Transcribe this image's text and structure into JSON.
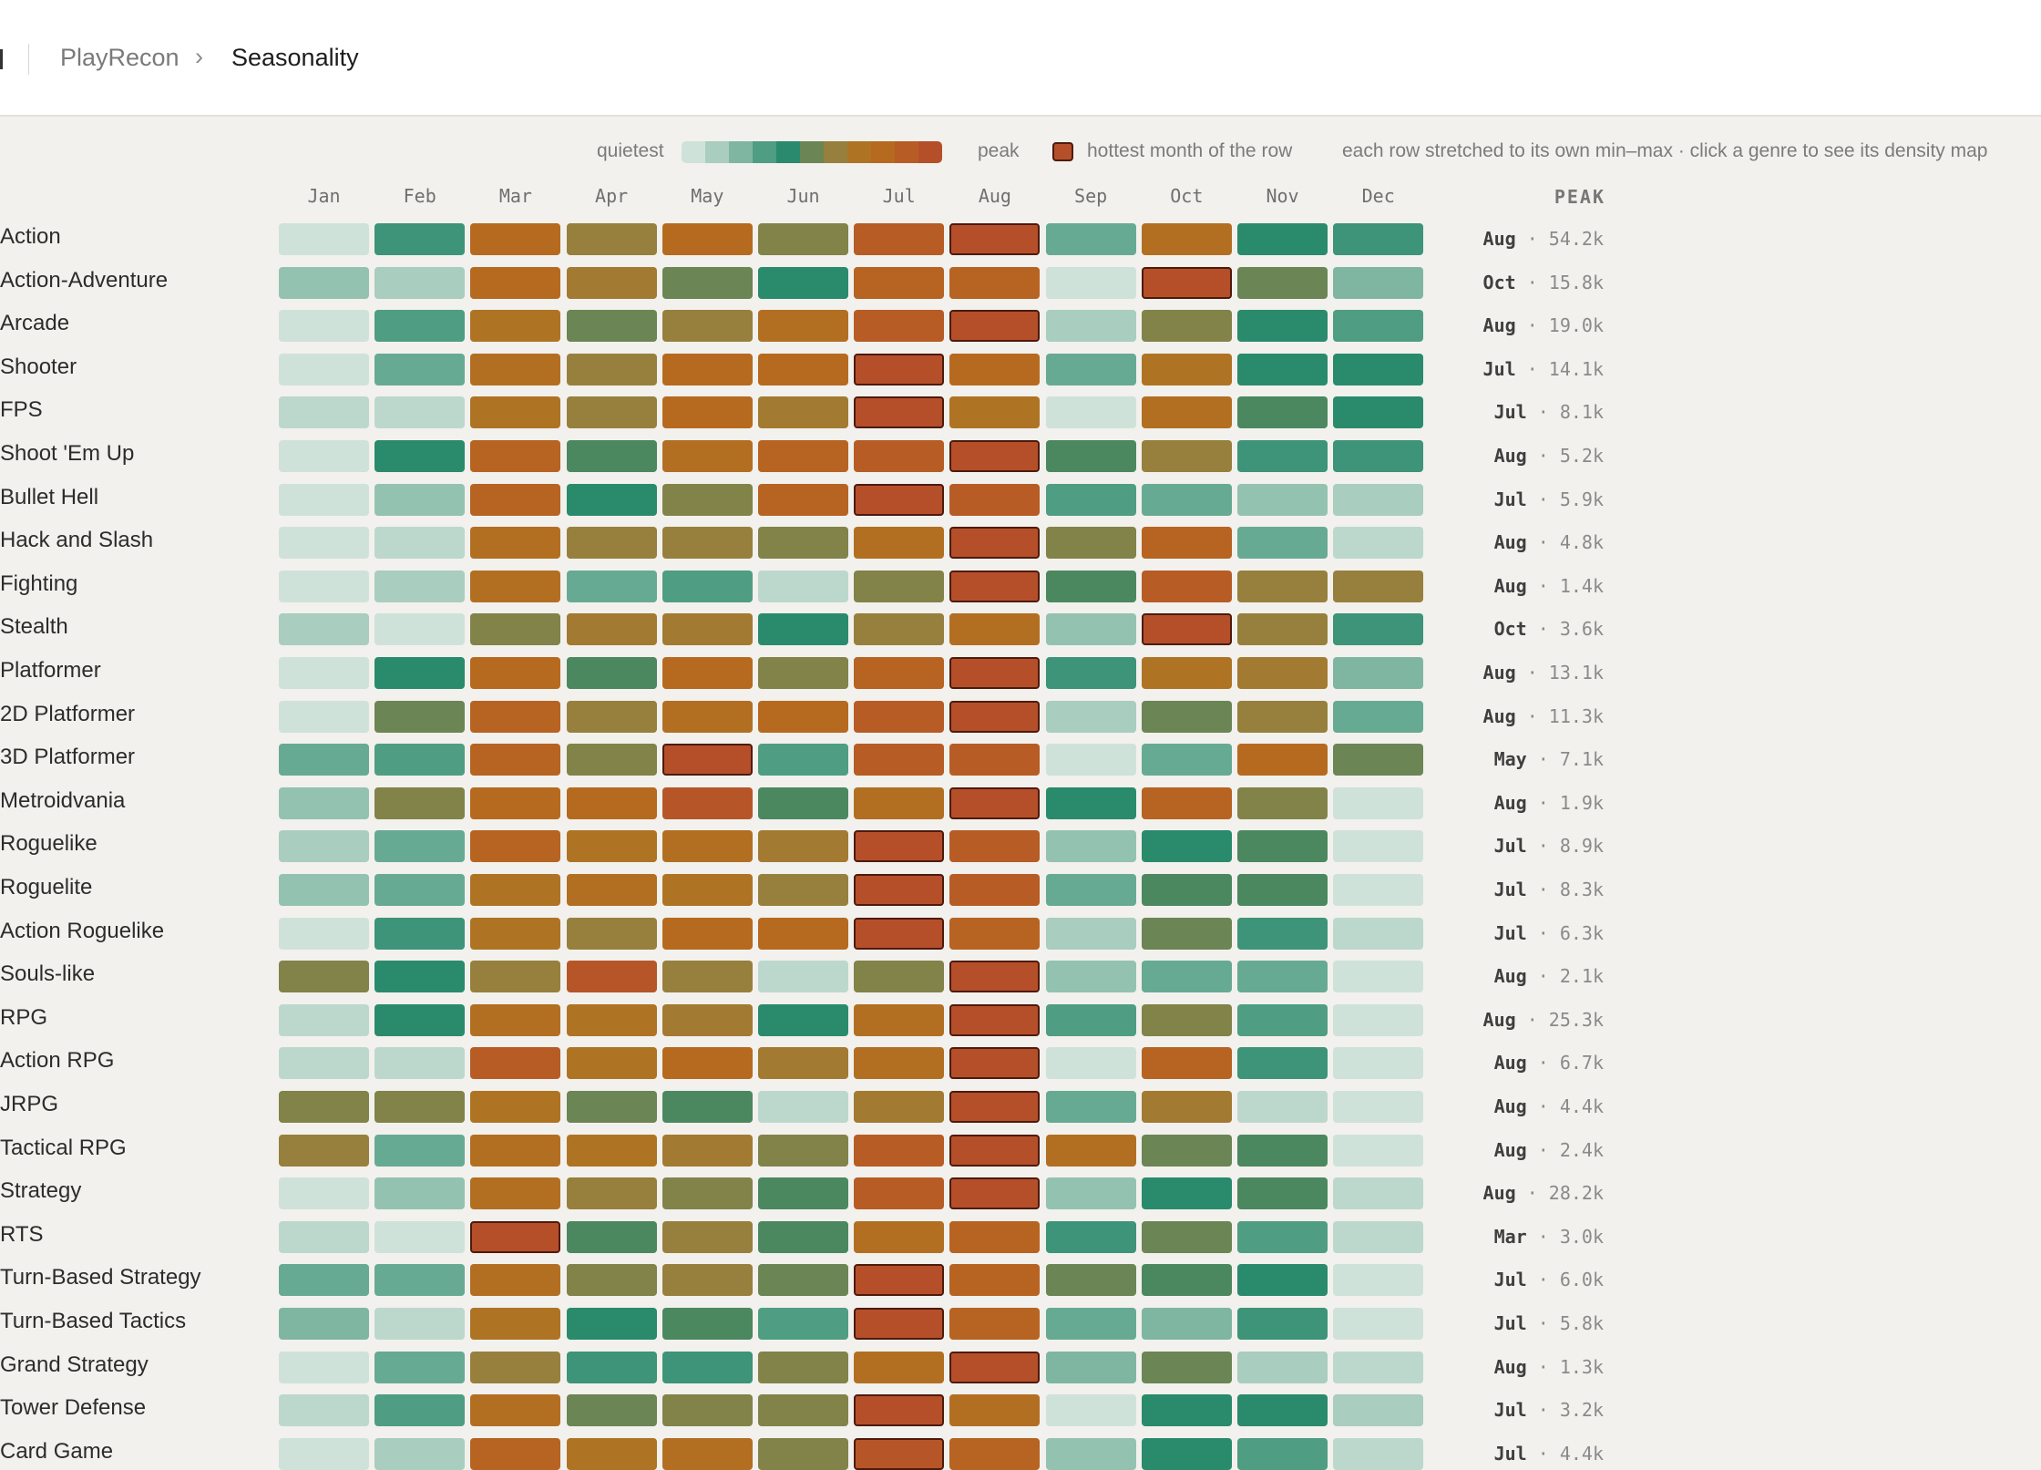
{
  "breadcrumb": {
    "root": "PlayRecon",
    "current": "Seasonality"
  },
  "legend": {
    "quietest": "quietest",
    "peak": "peak",
    "hottest": "hottest month of the row",
    "note": "each row stretched to its own min–max · click a genre to see its density map",
    "ramp_colors": [
      "#cfe2da",
      "#a9cdbf",
      "#7fb6a2",
      "#4f9d83",
      "#2a8b6c",
      "#6b8554",
      "#97803d",
      "#ae7424",
      "#b66a1f",
      "#b75c25",
      "#b54f2a"
    ],
    "hot_border_color": "#4e1a0c"
  },
  "chart_data": {
    "type": "heatmap",
    "title": "",
    "xlabel": "",
    "ylabel": "",
    "value_range": [
      0,
      1
    ],
    "x": [
      "Jan",
      "Feb",
      "Mar",
      "Apr",
      "May",
      "Jun",
      "Jul",
      "Aug",
      "Sep",
      "Oct",
      "Nov",
      "Dec"
    ],
    "peak_header": "PEAK",
    "rows": [
      {
        "genre": "Action",
        "values": [
          0.0,
          0.35,
          0.8,
          0.6,
          0.8,
          0.55,
          0.9,
          1.0,
          0.25,
          0.75,
          0.4,
          0.35
        ],
        "peak_month": "Aug",
        "peak_value": "54.2k"
      },
      {
        "genre": "Action-Adventure",
        "values": [
          0.15,
          0.1,
          0.8,
          0.65,
          0.5,
          0.4,
          0.85,
          0.85,
          0.0,
          1.0,
          0.5,
          0.2
        ],
        "peak_month": "Oct",
        "peak_value": "15.8k"
      },
      {
        "genre": "Arcade",
        "values": [
          0.0,
          0.3,
          0.7,
          0.5,
          0.6,
          0.75,
          0.9,
          1.0,
          0.1,
          0.55,
          0.4,
          0.3
        ],
        "peak_month": "Aug",
        "peak_value": "19.0k"
      },
      {
        "genre": "Shooter",
        "values": [
          0.0,
          0.25,
          0.75,
          0.6,
          0.8,
          0.8,
          1.0,
          0.8,
          0.25,
          0.7,
          0.4,
          0.4
        ],
        "peak_month": "Jul",
        "peak_value": "14.1k"
      },
      {
        "genre": "FPS",
        "values": [
          0.05,
          0.05,
          0.7,
          0.6,
          0.8,
          0.65,
          1.0,
          0.7,
          0.0,
          0.75,
          0.45,
          0.4
        ],
        "peak_month": "Jul",
        "peak_value": "8.1k"
      },
      {
        "genre": "Shoot 'Em Up",
        "values": [
          0.0,
          0.4,
          0.85,
          0.45,
          0.75,
          0.85,
          0.9,
          1.0,
          0.45,
          0.6,
          0.35,
          0.35
        ],
        "peak_month": "Aug",
        "peak_value": "5.2k"
      },
      {
        "genre": "Bullet Hell",
        "values": [
          0.0,
          0.15,
          0.85,
          0.4,
          0.55,
          0.85,
          1.0,
          0.9,
          0.3,
          0.25,
          0.15,
          0.1
        ],
        "peak_month": "Jul",
        "peak_value": "5.9k"
      },
      {
        "genre": "Hack and Slash",
        "values": [
          0.0,
          0.05,
          0.75,
          0.6,
          0.6,
          0.55,
          0.75,
          1.0,
          0.55,
          0.85,
          0.25,
          0.05
        ],
        "peak_month": "Aug",
        "peak_value": "4.8k"
      },
      {
        "genre": "Fighting",
        "values": [
          0.0,
          0.1,
          0.75,
          0.25,
          0.3,
          0.05,
          0.55,
          1.0,
          0.45,
          0.9,
          0.6,
          0.6
        ],
        "peak_month": "Aug",
        "peak_value": "1.4k"
      },
      {
        "genre": "Stealth",
        "values": [
          0.1,
          0.0,
          0.55,
          0.65,
          0.65,
          0.4,
          0.6,
          0.75,
          0.15,
          1.0,
          0.6,
          0.35
        ],
        "peak_month": "Oct",
        "peak_value": "3.6k"
      },
      {
        "genre": "Platformer",
        "values": [
          0.0,
          0.4,
          0.8,
          0.45,
          0.8,
          0.55,
          0.85,
          1.0,
          0.35,
          0.7,
          0.65,
          0.2
        ],
        "peak_month": "Aug",
        "peak_value": "13.1k"
      },
      {
        "genre": "2D Platformer",
        "values": [
          0.0,
          0.5,
          0.85,
          0.6,
          0.75,
          0.8,
          0.9,
          1.0,
          0.1,
          0.5,
          0.6,
          0.25
        ],
        "peak_month": "Aug",
        "peak_value": "11.3k"
      },
      {
        "genre": "3D Platformer",
        "values": [
          0.25,
          0.3,
          0.85,
          0.55,
          1.0,
          0.3,
          0.9,
          0.9,
          0.0,
          0.25,
          0.8,
          0.5
        ],
        "peak_month": "May",
        "peak_value": "7.1k"
      },
      {
        "genre": "Metroidvania",
        "values": [
          0.15,
          0.55,
          0.8,
          0.8,
          0.95,
          0.45,
          0.75,
          1.0,
          0.4,
          0.85,
          0.55,
          0.0
        ],
        "peak_month": "Aug",
        "peak_value": "1.9k"
      },
      {
        "genre": "Roguelike",
        "values": [
          0.1,
          0.25,
          0.85,
          0.7,
          0.75,
          0.65,
          1.0,
          0.9,
          0.15,
          0.4,
          0.45,
          0.0
        ],
        "peak_month": "Jul",
        "peak_value": "8.9k"
      },
      {
        "genre": "Roguelite",
        "values": [
          0.15,
          0.25,
          0.7,
          0.75,
          0.7,
          0.6,
          1.0,
          0.9,
          0.25,
          0.45,
          0.45,
          0.0
        ],
        "peak_month": "Jul",
        "peak_value": "8.3k"
      },
      {
        "genre": "Action Roguelike",
        "values": [
          0.0,
          0.35,
          0.7,
          0.6,
          0.8,
          0.8,
          1.0,
          0.85,
          0.1,
          0.5,
          0.35,
          0.05
        ],
        "peak_month": "Jul",
        "peak_value": "6.3k"
      },
      {
        "genre": "Souls-like",
        "values": [
          0.55,
          0.4,
          0.6,
          0.95,
          0.6,
          0.05,
          0.55,
          1.0,
          0.15,
          0.25,
          0.25,
          0.0
        ],
        "peak_month": "Aug",
        "peak_value": "2.1k"
      },
      {
        "genre": "RPG",
        "values": [
          0.05,
          0.4,
          0.75,
          0.7,
          0.65,
          0.4,
          0.75,
          1.0,
          0.3,
          0.55,
          0.3,
          0.0
        ],
        "peak_month": "Aug",
        "peak_value": "25.3k"
      },
      {
        "genre": "Action RPG",
        "values": [
          0.05,
          0.05,
          0.9,
          0.7,
          0.8,
          0.65,
          0.75,
          1.0,
          0.0,
          0.85,
          0.35,
          0.0
        ],
        "peak_month": "Aug",
        "peak_value": "6.7k"
      },
      {
        "genre": "JRPG",
        "values": [
          0.55,
          0.55,
          0.7,
          0.5,
          0.45,
          0.05,
          0.65,
          1.0,
          0.25,
          0.65,
          0.05,
          0.0
        ],
        "peak_month": "Aug",
        "peak_value": "4.4k"
      },
      {
        "genre": "Tactical RPG",
        "values": [
          0.6,
          0.25,
          0.75,
          0.7,
          0.65,
          0.55,
          0.9,
          1.0,
          0.75,
          0.5,
          0.45,
          0.0
        ],
        "peak_month": "Aug",
        "peak_value": "2.4k"
      },
      {
        "genre": "Strategy",
        "values": [
          0.0,
          0.15,
          0.75,
          0.6,
          0.55,
          0.45,
          0.9,
          1.0,
          0.15,
          0.4,
          0.45,
          0.05
        ],
        "peak_month": "Aug",
        "peak_value": "28.2k"
      },
      {
        "genre": "RTS",
        "values": [
          0.05,
          0.0,
          1.0,
          0.45,
          0.6,
          0.45,
          0.75,
          0.85,
          0.35,
          0.5,
          0.3,
          0.05
        ],
        "peak_month": "Mar",
        "peak_value": "3.0k"
      },
      {
        "genre": "Turn-Based Strategy",
        "values": [
          0.25,
          0.25,
          0.75,
          0.55,
          0.6,
          0.5,
          1.0,
          0.85,
          0.5,
          0.45,
          0.4,
          0.0
        ],
        "peak_month": "Jul",
        "peak_value": "6.0k"
      },
      {
        "genre": "Turn-Based Tactics",
        "values": [
          0.2,
          0.05,
          0.7,
          0.4,
          0.45,
          0.3,
          1.0,
          0.85,
          0.25,
          0.2,
          0.35,
          0.0
        ],
        "peak_month": "Jul",
        "peak_value": "5.8k"
      },
      {
        "genre": "Grand Strategy",
        "values": [
          0.0,
          0.25,
          0.6,
          0.35,
          0.35,
          0.55,
          0.75,
          1.0,
          0.2,
          0.5,
          0.1,
          0.05
        ],
        "peak_month": "Aug",
        "peak_value": "1.3k"
      },
      {
        "genre": "Tower Defense",
        "values": [
          0.05,
          0.3,
          0.75,
          0.5,
          0.55,
          0.55,
          1.0,
          0.75,
          0.0,
          0.4,
          0.4,
          0.1
        ],
        "peak_month": "Jul",
        "peak_value": "3.2k"
      },
      {
        "genre": "Card Game",
        "values": [
          0.0,
          0.1,
          0.85,
          0.7,
          0.75,
          0.55,
          0.95,
          0.85,
          0.15,
          0.4,
          0.3,
          0.05
        ],
        "peak_month": "Jul",
        "peak_value": "4.4k"
      }
    ]
  }
}
